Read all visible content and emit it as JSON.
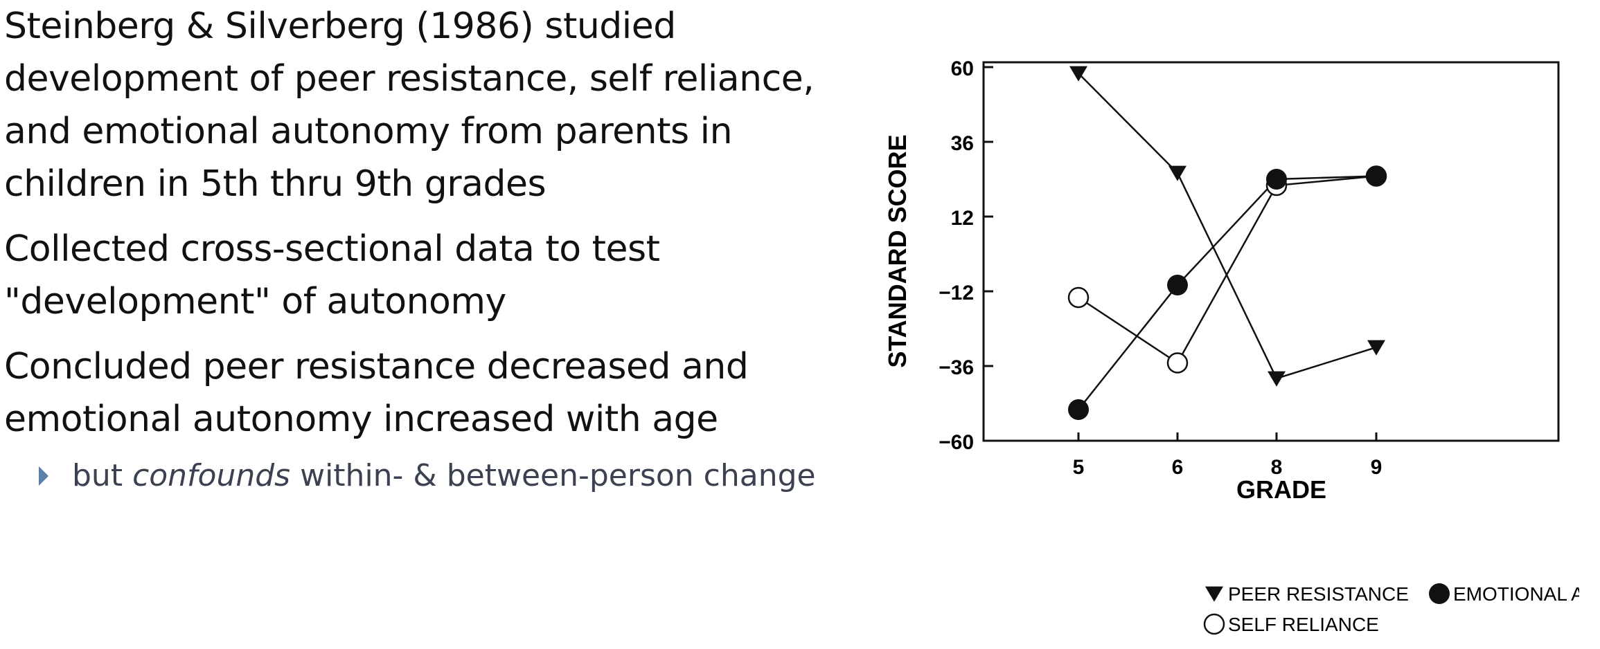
{
  "slide": {
    "bullet1": "Steinberg & Silverberg (1986) studied development of peer resistance, self reliance, and emotional autonomy from parents in children in 5th thru 9th grades",
    "bullet2": "Collected cross-sectional data to test \"development\" of autonomy",
    "bullet3": "Concluded peer resistance decreased and emotional autonomy increased with age",
    "sub_prefix": "but ",
    "sub_emphasis": "confounds",
    "sub_suffix": " within- & between-person change",
    "accent_color": "#5b7fa8"
  },
  "chart_data": {
    "type": "line",
    "title": "",
    "xlabel": "GRADE",
    "ylabel": "STANDARD SCORE",
    "categories": [
      "5",
      "6",
      "8",
      "9"
    ],
    "yticks": [
      "60",
      "36",
      "12",
      "-12",
      "-36",
      "-60"
    ],
    "ylim": [
      -60,
      60
    ],
    "grid": false,
    "legend_position": "bottom",
    "series": [
      {
        "name": "PEER RESISTANCE",
        "marker": "triangle-down",
        "values": [
          58,
          26,
          -40,
          -30
        ]
      },
      {
        "name": "SELF RELIANCE",
        "marker": "open-circle",
        "values": [
          -14,
          -35,
          22,
          25
        ]
      },
      {
        "name": "EMOTIONAL AUTONOMY",
        "marker": "filled-circle",
        "values": [
          -50,
          -10,
          24,
          25
        ]
      }
    ]
  }
}
